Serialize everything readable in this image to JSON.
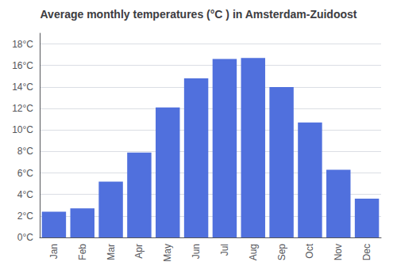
{
  "chart_data": {
    "type": "bar",
    "title": "Average monthly temperatures (°C ) in Amsterdam-Zuidoost",
    "categories": [
      "Jan",
      "Feb",
      "Mar",
      "Apr",
      "May",
      "Jun",
      "Jul",
      "Aug",
      "Sep",
      "Oct",
      "Nov",
      "Dec"
    ],
    "values": [
      2.4,
      2.7,
      5.2,
      7.9,
      12.1,
      14.8,
      16.6,
      16.7,
      14.0,
      10.7,
      6.3,
      3.6
    ],
    "ylim": [
      0,
      19
    ],
    "yticks": [
      {
        "value": 0,
        "label": "0°C"
      },
      {
        "value": 2,
        "label": "2°C"
      },
      {
        "value": 4,
        "label": "4°C"
      },
      {
        "value": 6,
        "label": "6°C"
      },
      {
        "value": 8,
        "label": "8°C"
      },
      {
        "value": 10,
        "label": "10°C"
      },
      {
        "value": 12,
        "label": "12°C"
      },
      {
        "value": 14,
        "label": "14°C"
      },
      {
        "value": 16,
        "label": "16°C"
      },
      {
        "value": 18,
        "label": "18°C"
      }
    ],
    "grid": true
  }
}
